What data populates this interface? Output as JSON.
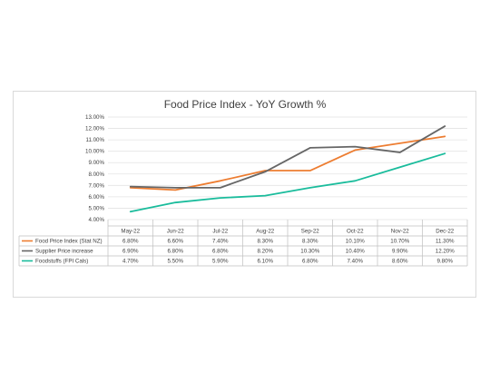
{
  "chart_data": {
    "type": "line",
    "title": "Food Price Index - YoY Growth %",
    "categories": [
      "May-22",
      "Jun-22",
      "Jul-22",
      "Aug-22",
      "Sep-22",
      "Oct-22",
      "Nov-22",
      "Dec-22"
    ],
    "y_ticks": [
      "4.00%",
      "5.00%",
      "6.00%",
      "7.00%",
      "8.00%",
      "9.00%",
      "10.00%",
      "11.00%",
      "12.00%",
      "13.00%"
    ],
    "ylim": [
      4,
      13
    ],
    "grid": true,
    "legend": "data-table",
    "series": [
      {
        "name": "Food Price Index (Stat NZ)",
        "color": "#ed7d31",
        "values": [
          6.8,
          6.6,
          7.4,
          8.3,
          8.3,
          10.1,
          10.7,
          11.3
        ],
        "labels": [
          "6.80%",
          "6.60%",
          "7.40%",
          "8.30%",
          "8.30%",
          "10.10%",
          "10.70%",
          "11.30%"
        ]
      },
      {
        "name": "Supplier Price increase",
        "color": "#666666",
        "values": [
          6.9,
          6.8,
          6.8,
          8.2,
          10.3,
          10.4,
          9.9,
          12.2
        ],
        "labels": [
          "6.90%",
          "6.80%",
          "6.80%",
          "8.20%",
          "10.30%",
          "10.40%",
          "9.90%",
          "12.20%"
        ]
      },
      {
        "name": "Foodstuffs (FPI Cals)",
        "color": "#1abc9c",
        "values": [
          4.7,
          5.5,
          5.9,
          6.1,
          6.8,
          7.4,
          8.6,
          9.8
        ],
        "labels": [
          "4.70%",
          "5.50%",
          "5.90%",
          "6.10%",
          "6.80%",
          "7.40%",
          "8.60%",
          "9.80%"
        ]
      }
    ]
  }
}
